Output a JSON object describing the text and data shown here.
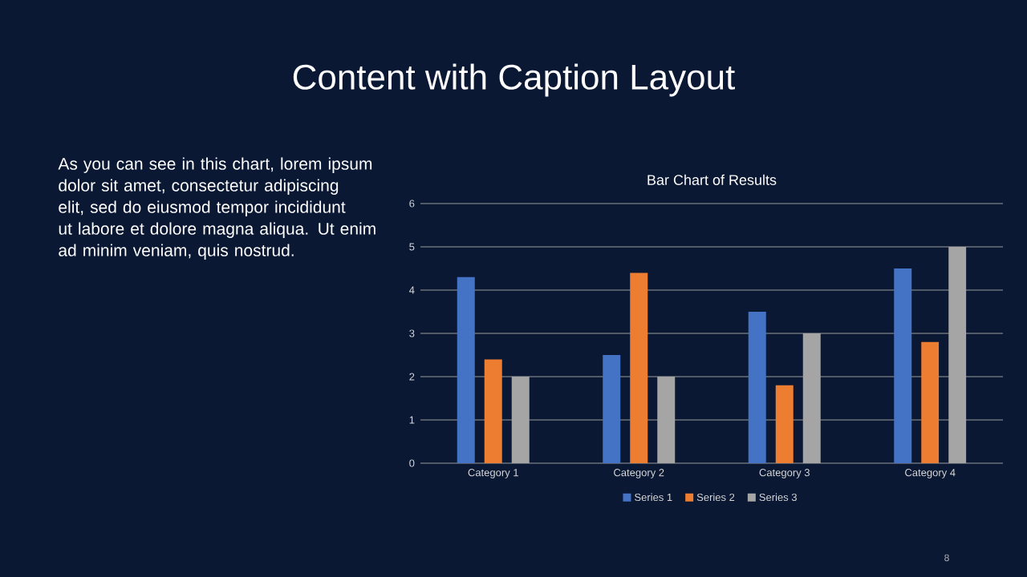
{
  "chart_data": [
    {
      "type": "other",
      "title": "Content with Caption Layout",
      "annotations": [
        "As you can see in this chart, lorem ipsum dolor sit amet, consectetur adipiscing elit, sed do eiusmod tempor incididunt ut labore et dolore magna aliqua. Ut enim ad minim veniam, quis nostrud.",
        "8"
      ]
    },
    {
      "type": "bar",
      "title": "Bar Chart of Results",
      "categories": [
        "Category 1",
        "Category 2",
        "Category 3",
        "Category 4"
      ],
      "series": [
        {
          "name": "Series 1",
          "color": "#4472c4",
          "values": [
            4.3,
            2.5,
            3.5,
            4.5
          ]
        },
        {
          "name": "Series 2",
          "color": "#ed7d31",
          "values": [
            2.4,
            4.4,
            1.8,
            2.8
          ]
        },
        {
          "name": "Series 3",
          "color": "#a5a5a5",
          "values": [
            2,
            2,
            3,
            5
          ]
        }
      ],
      "ylim": [
        0,
        6
      ],
      "yticks": [
        0,
        1,
        2,
        3,
        4,
        5,
        6
      ],
      "grid": "y",
      "legend": "bottom"
    }
  ]
}
